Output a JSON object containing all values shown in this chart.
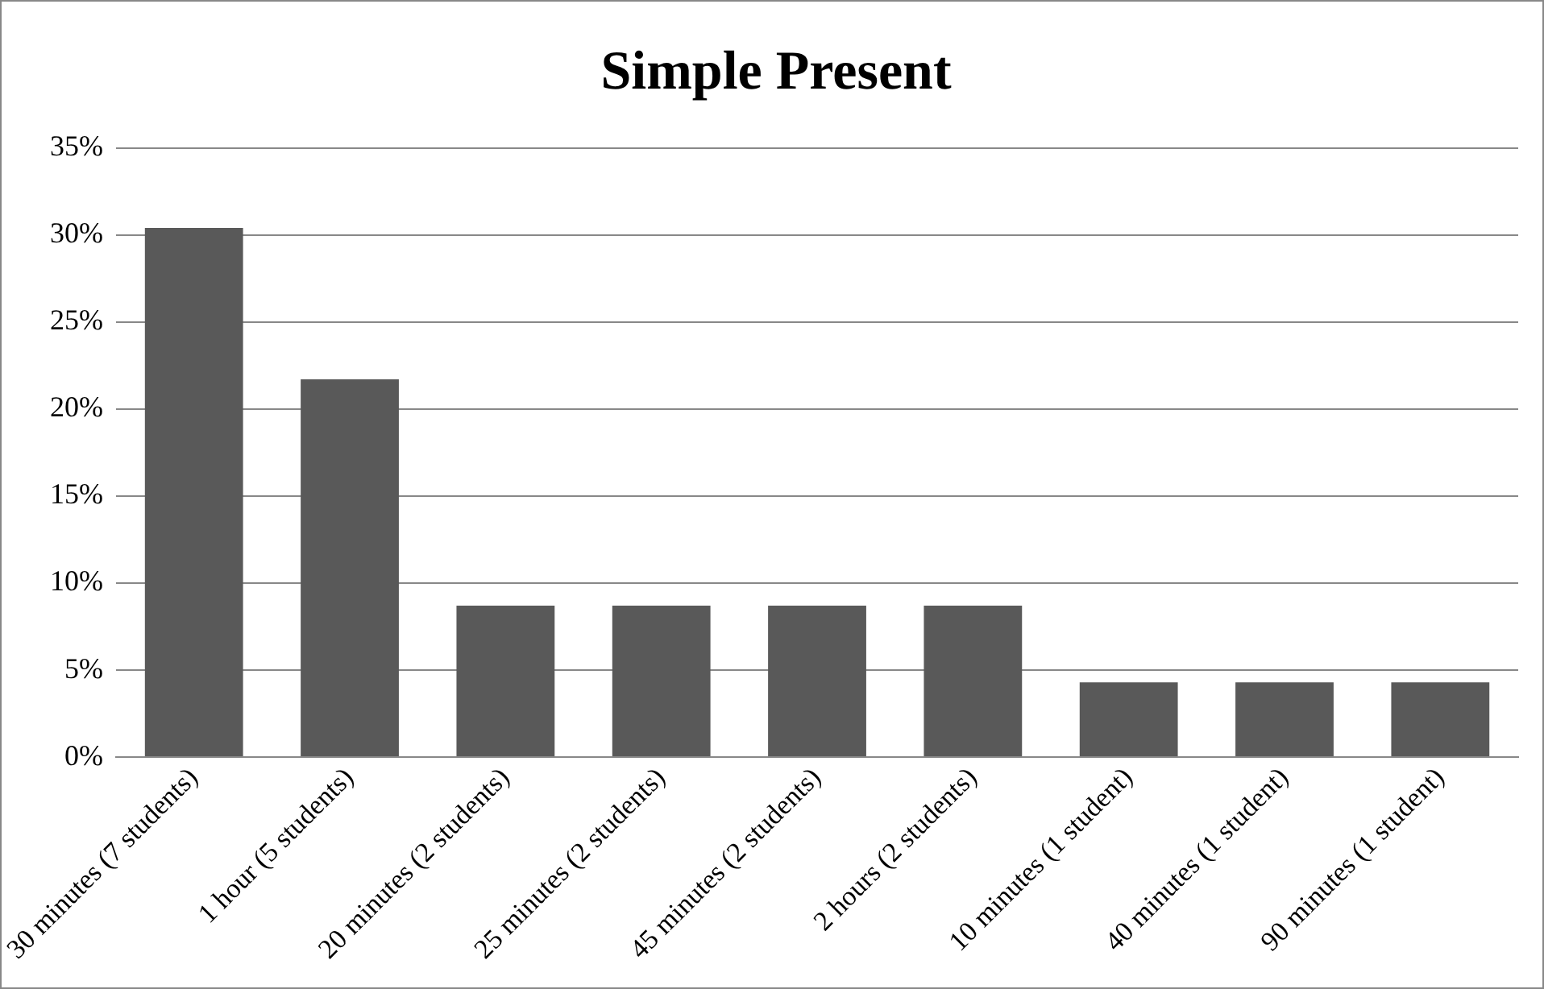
{
  "chart_data": {
    "type": "bar",
    "title": "Simple Present",
    "categories": [
      "30 minutes (7 students)",
      "1 hour (5 students)",
      "20 minutes (2 students)",
      "25 minutes (2 students)",
      "45 minutes (2 students)",
      "2 hours (2 students)",
      "10 minutes (1 student)",
      "40 minutes (1 student)",
      "90 minutes (1 student)"
    ],
    "values": [
      30.4,
      21.7,
      8.7,
      8.7,
      8.7,
      8.7,
      4.3,
      4.3,
      4.3
    ],
    "color": "#595959",
    "ylim": [
      0,
      35
    ],
    "yticks": [
      {
        "value": 0,
        "label": "0%"
      },
      {
        "value": 5,
        "label": "5%"
      },
      {
        "value": 10,
        "label": "10%"
      },
      {
        "value": 15,
        "label": "15%"
      },
      {
        "value": 20,
        "label": "20%"
      },
      {
        "value": 25,
        "label": "25%"
      },
      {
        "value": 30,
        "label": "30%"
      },
      {
        "value": 35,
        "label": "35%"
      }
    ],
    "grid": "y",
    "legend": false
  }
}
